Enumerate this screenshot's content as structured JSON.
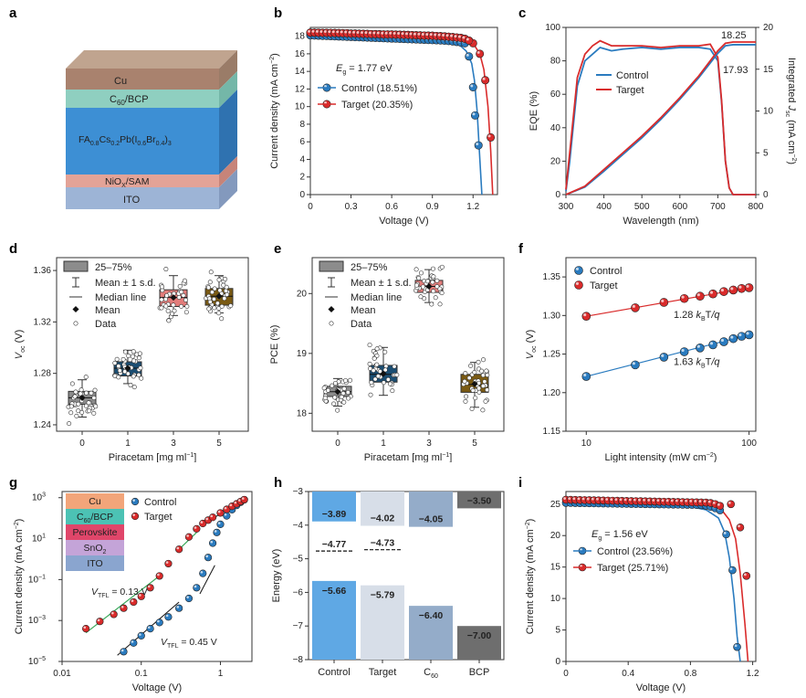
{
  "panel_labels": {
    "a": "a",
    "b": "b",
    "c": "c",
    "d": "d",
    "e": "e",
    "f": "f",
    "g": "g",
    "h": "h",
    "i": "i"
  },
  "colors": {
    "control": "#2a7bbf",
    "target": "#d92b2b",
    "control_dark": "#1f5fa0",
    "target_dark": "#b01e1e"
  },
  "device_stack": {
    "layers": [
      {
        "label": "Cu",
        "color": "#a9826e"
      },
      {
        "label": "C60/BCP",
        "color": "#8fcfc0"
      },
      {
        "label": "FA0.8Cs0.2Pb(I0.6Br0.4)3",
        "color": "#3d8fd4"
      },
      {
        "label": "NiOx/SAM",
        "color": "#e3a397"
      },
      {
        "label": "ITO",
        "color": "#9db4d6"
      }
    ]
  },
  "chart_data": [
    {
      "id": "b",
      "type": "line",
      "xlabel": "Voltage (V)",
      "ylabel": "Current density (mA cm−2)",
      "xlim": [
        0,
        1.38
      ],
      "ylim": [
        0,
        19
      ],
      "xticks": [
        "0",
        "0.3",
        "0.6",
        "0.9",
        "1.2"
      ],
      "yticks": [
        "0",
        "2",
        "4",
        "6",
        "8",
        "10",
        "12",
        "14",
        "16",
        "18"
      ],
      "annotation": "Eg = 1.77 eV",
      "series": [
        {
          "name": "Control (18.51%)",
          "color": "#2a7bbf",
          "x": [
            0,
            0.3,
            0.6,
            0.9,
            1.1,
            1.15,
            1.19,
            1.21,
            1.23,
            1.25,
            1.265
          ],
          "y": [
            18.1,
            17.95,
            17.8,
            17.55,
            17.0,
            16.3,
            14.9,
            13.0,
            9.5,
            4.0,
            0
          ],
          "markers_x": [
            1.17,
            1.2,
            1.215,
            1.24
          ],
          "markers_y": [
            15.7,
            12.2,
            9.0,
            5.6
          ]
        },
        {
          "name": "Target  (20.35%)",
          "color": "#d92b2b",
          "x": [
            0,
            0.3,
            0.6,
            0.9,
            1.1,
            1.2,
            1.25,
            1.28,
            1.31,
            1.33,
            1.345
          ],
          "y": [
            18.4,
            18.3,
            18.2,
            18.05,
            17.8,
            17.2,
            16.0,
            14.2,
            10.0,
            5.0,
            0
          ],
          "markers_x": [
            0,
            0.03,
            0.06,
            0.09,
            0.12,
            0.15,
            0.18,
            0.21,
            0.24,
            0.27,
            0.3,
            0.33,
            0.36,
            0.39,
            0.42,
            0.45,
            0.48,
            0.51,
            0.54,
            0.57,
            0.6,
            0.63,
            0.66,
            0.69,
            0.72,
            0.75,
            0.78,
            0.81,
            0.84,
            0.87,
            0.9,
            0.93,
            0.96,
            0.99,
            1.02,
            1.05,
            1.08,
            1.11,
            1.14,
            1.17,
            1.2,
            1.25,
            1.29,
            1.33
          ],
          "markers_y": [
            18.4,
            18.4,
            18.39,
            18.38,
            18.38,
            18.37,
            18.36,
            18.35,
            18.34,
            18.33,
            18.3,
            18.3,
            18.28,
            18.27,
            18.26,
            18.24,
            18.23,
            18.22,
            18.2,
            18.2,
            18.2,
            18.18,
            18.17,
            18.15,
            18.14,
            18.12,
            18.1,
            18.09,
            18.07,
            18.06,
            18.05,
            18.02,
            18.0,
            17.97,
            17.94,
            17.9,
            17.85,
            17.8,
            17.7,
            17.5,
            17.2,
            16.0,
            13.0,
            6.5
          ]
        }
      ]
    },
    {
      "id": "c",
      "type": "line",
      "xlabel": "Wavelength (nm)",
      "ylabel": "EQE (%)",
      "y2label": "Integrated Jsc (mA cm−2)",
      "xlim": [
        300,
        800
      ],
      "ylim": [
        0,
        100
      ],
      "y2lim": [
        0,
        20
      ],
      "xticks": [
        "300",
        "400",
        "500",
        "600",
        "700",
        "800"
      ],
      "yticks": [
        "0",
        "20",
        "40",
        "60",
        "80",
        "100"
      ],
      "y2ticks": [
        "0",
        "5",
        "10",
        "15",
        "20"
      ],
      "labels": [
        "18.25",
        "17.93"
      ],
      "series": [
        {
          "name": "Control",
          "color": "#2a7bbf",
          "x": [
            300,
            310,
            330,
            350,
            370,
            390,
            420,
            450,
            500,
            550,
            600,
            650,
            680,
            700,
            710,
            720,
            730,
            740,
            800
          ],
          "y": [
            2,
            20,
            65,
            80,
            84,
            88,
            86,
            87,
            88,
            87,
            88,
            88,
            87,
            80,
            55,
            20,
            4,
            0,
            0
          ]
        },
        {
          "name": "Target",
          "color": "#d92b2b",
          "x": [
            300,
            310,
            330,
            350,
            370,
            390,
            420,
            450,
            500,
            550,
            600,
            650,
            680,
            700,
            710,
            720,
            730,
            740,
            800
          ],
          "y": [
            3,
            25,
            70,
            84,
            89,
            92,
            89,
            89,
            89,
            88,
            89,
            89,
            90,
            82,
            56,
            20,
            4,
            0,
            0
          ]
        },
        {
          "name": "Jsc Control",
          "color": "#2a7bbf",
          "x": [
            300,
            350,
            400,
            450,
            500,
            550,
            600,
            650,
            700,
            720,
            740,
            800
          ],
          "y": [
            0,
            0.9,
            2.8,
            4.8,
            6.8,
            9.0,
            11.4,
            14.0,
            16.9,
            17.8,
            17.93,
            17.93
          ]
        },
        {
          "name": "Jsc Target",
          "color": "#d92b2b",
          "x": [
            300,
            350,
            400,
            450,
            500,
            550,
            600,
            650,
            700,
            720,
            740,
            800
          ],
          "y": [
            0,
            1.0,
            3.0,
            5.0,
            7.0,
            9.2,
            11.6,
            14.2,
            17.2,
            18.1,
            18.25,
            18.25
          ]
        }
      ]
    },
    {
      "id": "d",
      "type": "box",
      "xlabel": "Piracetam [mg ml−1]",
      "ylabel": "Voc (V)",
      "ylim": [
        1.235,
        1.37
      ],
      "categories": [
        "0",
        "1",
        "3",
        "5"
      ],
      "yticks": [
        "1.24",
        "1.28",
        "1.32",
        "1.36"
      ],
      "legend": [
        "25–75%",
        "Mean ± 1 s.d.",
        "Median line",
        "Mean",
        "Data"
      ],
      "boxes": [
        {
          "q1": 1.256,
          "q3": 1.266,
          "median": 1.261,
          "mean": 1.261,
          "lo": 1.246,
          "hi": 1.275,
          "color": "#8c8c8c"
        },
        {
          "q1": 1.278,
          "q3": 1.289,
          "median": 1.284,
          "mean": 1.284,
          "lo": 1.272,
          "hi": 1.298,
          "color": "#1b4e73"
        },
        {
          "q1": 1.332,
          "q3": 1.345,
          "median": 1.339,
          "mean": 1.339,
          "lo": 1.325,
          "hi": 1.356,
          "color": "#e27d7b"
        },
        {
          "q1": 1.333,
          "q3": 1.346,
          "median": 1.34,
          "mean": 1.34,
          "lo": 1.327,
          "hi": 1.356,
          "color": "#7a5a13"
        }
      ]
    },
    {
      "id": "e",
      "type": "box",
      "xlabel": "Piracetam [mg ml−1]",
      "ylabel": "PCE (%)",
      "ylim": [
        17.7,
        20.6
      ],
      "categories": [
        "0",
        "1",
        "3",
        "5"
      ],
      "yticks": [
        "18",
        "19",
        "20"
      ],
      "legend": [
        "25–75%",
        "Mean ± 1 s.d.",
        "Median line",
        "Mean",
        "Data"
      ],
      "boxes": [
        {
          "q1": 18.28,
          "q3": 18.45,
          "median": 18.36,
          "mean": 18.36,
          "lo": 18.12,
          "hi": 18.58,
          "color": "#8c8c8c"
        },
        {
          "q1": 18.52,
          "q3": 18.8,
          "median": 18.65,
          "mean": 18.66,
          "lo": 18.3,
          "hi": 19.1,
          "color": "#1b4e73"
        },
        {
          "q1": 20.02,
          "q3": 20.22,
          "median": 20.12,
          "mean": 20.12,
          "lo": 19.85,
          "hi": 20.4,
          "color": "#e27d7b"
        },
        {
          "q1": 18.35,
          "q3": 18.65,
          "median": 18.48,
          "mean": 18.49,
          "lo": 18.1,
          "hi": 18.85,
          "color": "#7a5a13"
        }
      ]
    },
    {
      "id": "f",
      "type": "scatter",
      "xlabel": "Light intensity (mW cm−2)",
      "ylabel": "Voc (V)",
      "xscale": "log",
      "xlim": [
        7.5,
        110
      ],
      "ylim": [
        1.15,
        1.375
      ],
      "xticks": [
        "10",
        "100"
      ],
      "yticks": [
        "1.15",
        "1.20",
        "1.25",
        "1.30",
        "1.35"
      ],
      "annotations": [
        "1.28 kBT/q",
        "1.63 kBT/q"
      ],
      "series": [
        {
          "name": "Control",
          "color": "#2a7bbf",
          "x": [
            10,
            20,
            30,
            40,
            50,
            60,
            70,
            80,
            90,
            100
          ],
          "y": [
            1.221,
            1.236,
            1.246,
            1.253,
            1.258,
            1.262,
            1.266,
            1.27,
            1.273,
            1.275
          ]
        },
        {
          "name": "Target",
          "color": "#d92b2b",
          "x": [
            10,
            20,
            30,
            40,
            50,
            60,
            70,
            80,
            90,
            100
          ],
          "y": [
            1.299,
            1.31,
            1.317,
            1.322,
            1.325,
            1.328,
            1.331,
            1.333,
            1.335,
            1.336
          ]
        }
      ]
    },
    {
      "id": "g",
      "type": "scatter",
      "xlabel": "Voltage (V)",
      "ylabel": "Current density (mA cm−2)",
      "xscale": "log",
      "yscale": "log",
      "xlim": [
        0.01,
        2.5
      ],
      "ylim": [
        1e-05,
        2000
      ],
      "xticks": [
        "0.01",
        "0.1",
        "1"
      ],
      "yticks": [
        "10−5",
        "10−3",
        "10−1",
        "101",
        "103"
      ],
      "stack": [
        "Cu",
        "C60/BCP",
        "Perovskite",
        "SnO2",
        "ITO"
      ],
      "stack_colors": [
        "#f2a57a",
        "#4cc2b4",
        "#e0466a",
        "#c4a4d8",
        "#8aa5cf"
      ],
      "annotations": [
        "VTFL = 0.13 V",
        "VTFL = 0.45 V"
      ],
      "series": [
        {
          "name": "Control",
          "color": "#2a7bbf",
          "x": [
            0.06,
            0.08,
            0.1,
            0.13,
            0.17,
            0.22,
            0.3,
            0.4,
            0.5,
            0.6,
            0.7,
            0.8,
            0.9,
            1.0,
            1.2,
            1.4,
            1.6,
            1.8,
            2.0
          ],
          "y": [
            3e-05,
            8e-05,
            0.00018,
            0.0004,
            0.0008,
            0.0015,
            0.004,
            0.012,
            0.04,
            0.2,
            1.2,
            6,
            20,
            50,
            130,
            260,
            420,
            600,
            800
          ]
        },
        {
          "name": "Target",
          "color": "#d92b2b",
          "x": [
            0.02,
            0.03,
            0.045,
            0.06,
            0.08,
            0.1,
            0.13,
            0.17,
            0.22,
            0.3,
            0.4,
            0.5,
            0.6,
            0.7,
            0.8,
            1.0,
            1.2,
            1.4,
            1.6,
            1.8,
            2.0
          ],
          "y": [
            0.0004,
            0.0009,
            0.002,
            0.004,
            0.008,
            0.015,
            0.04,
            0.15,
            0.6,
            3,
            12,
            30,
            55,
            80,
            110,
            180,
            270,
            380,
            500,
            650,
            800
          ]
        }
      ]
    },
    {
      "id": "h",
      "type": "bar",
      "ylabel": "Energy (eV)",
      "ylim": [
        -8,
        -3
      ],
      "categories": [
        "Control",
        "Target",
        "C60",
        "BCP"
      ],
      "yticks": [
        "−3",
        "−4",
        "−5",
        "−6",
        "−7",
        "−8"
      ],
      "bars": [
        {
          "cb": -3.89,
          "vb": -5.66,
          "fermi": -4.77,
          "cb_label": "−3.89",
          "vb_label": "−5.66",
          "fermi_label": "−4.77",
          "color": "#5fa8e4"
        },
        {
          "cb": -4.02,
          "vb": -5.79,
          "fermi": -4.73,
          "cb_label": "−4.02",
          "vb_label": "−5.79",
          "fermi_label": "−4.73",
          "color": "#d7dee8"
        },
        {
          "cb": -4.05,
          "vb": -6.4,
          "cb_label": "−4.05",
          "vb_label": "−6.40",
          "color": "#94acc9"
        },
        {
          "cb": -3.5,
          "vb": -7.0,
          "cb_label": "−3.50",
          "vb_label": "−7.00",
          "color": "#6e6e6e"
        }
      ]
    },
    {
      "id": "i",
      "type": "line",
      "xlabel": "Voltage (V)",
      "ylabel": "Current density (mA cm−2)",
      "xlim": [
        0,
        1.22
      ],
      "ylim": [
        0,
        27
      ],
      "xticks": [
        "0",
        "0.4",
        "0.8",
        "1.2"
      ],
      "yticks": [
        "0",
        "5",
        "10",
        "15",
        "20",
        "25"
      ],
      "annotation": "Eg = 1.56 eV",
      "series": [
        {
          "name": "Control (23.56%)",
          "color": "#2a7bbf",
          "x": [
            0,
            0.2,
            0.4,
            0.6,
            0.8,
            0.9,
            0.98,
            1.02,
            1.05,
            1.08,
            1.1,
            1.12
          ],
          "y": [
            25.2,
            25.1,
            25.0,
            24.9,
            24.6,
            24.1,
            22.8,
            20.5,
            16.5,
            10.0,
            4.0,
            0
          ]
        },
        {
          "name": "Target  (25.71%)",
          "color": "#d92b2b",
          "x": [
            0,
            0.2,
            0.4,
            0.6,
            0.8,
            0.9,
            1.0,
            1.05,
            1.09,
            1.12,
            1.15,
            1.17
          ],
          "y": [
            25.7,
            25.7,
            25.6,
            25.5,
            25.3,
            25.0,
            24.1,
            22.5,
            19.5,
            14.0,
            6.0,
            0
          ]
        }
      ]
    }
  ],
  "text": {
    "b_eg": "E",
    "b_eg_sub": "g",
    "b_eg_val": " = 1.77 eV",
    "i_eg": "E",
    "i_eg_sub": "g",
    "i_eg_val": " = 1.56 eV",
    "ctrl": "Control",
    "tgt": "Target"
  }
}
